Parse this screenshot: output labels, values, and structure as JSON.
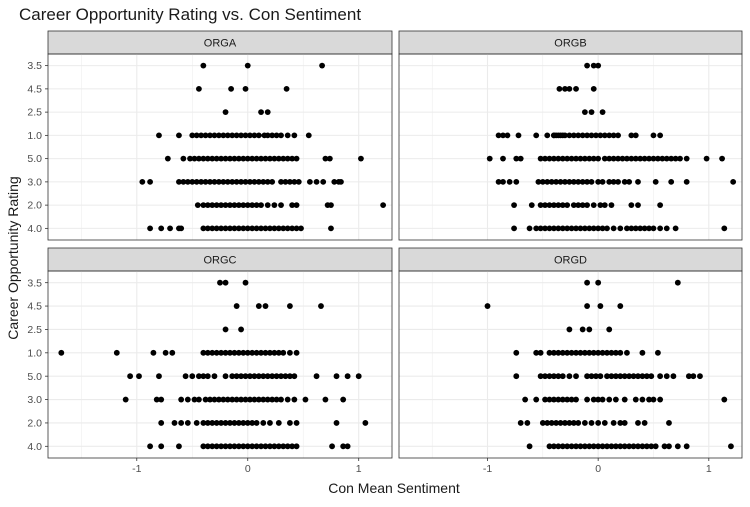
{
  "chart_data": {
    "type": "scatter",
    "title": "Career Opportunity Rating vs. Con Sentiment",
    "xlabel": "Con Mean Sentiment",
    "ylabel": "Career Opportunity Rating",
    "xlim": [
      -1.8,
      1.3
    ],
    "x_ticks": [
      -1,
      0,
      1
    ],
    "x_tick_labels": [
      "-1",
      "0",
      "1"
    ],
    "y_categories": [
      "4.0",
      "2.0",
      "3.0",
      "5.0",
      "1.0",
      "2.5",
      "4.5",
      "3.5"
    ],
    "grid": true,
    "facets": [
      {
        "name": "ORGA",
        "points": {
          "3.5": [
            -0.4,
            0.0,
            0.67
          ],
          "4.5": [
            -0.44,
            -0.15,
            -0.02,
            0.35
          ],
          "2.5": [
            -0.2,
            0.12,
            0.18
          ],
          "1.0": [
            -0.8,
            -0.62,
            -0.5,
            -0.46,
            -0.42,
            -0.38,
            -0.34,
            -0.3,
            -0.26,
            -0.22,
            -0.18,
            -0.14,
            -0.1,
            -0.06,
            -0.02,
            0.02,
            0.06,
            0.1,
            0.15,
            0.18,
            0.22,
            0.26,
            0.3,
            0.36,
            0.42,
            0.55
          ],
          "5.0": [
            -0.72,
            -0.58,
            -0.52,
            -0.48,
            -0.44,
            -0.4,
            -0.36,
            -0.32,
            -0.28,
            -0.24,
            -0.2,
            -0.16,
            -0.12,
            -0.08,
            -0.04,
            0.0,
            0.04,
            0.08,
            0.12,
            0.16,
            0.2,
            0.24,
            0.28,
            0.32,
            0.36,
            0.4,
            0.44,
            0.7,
            0.74,
            1.02
          ],
          "3.0": [
            -0.95,
            -0.88,
            -0.62,
            -0.58,
            -0.54,
            -0.5,
            -0.46,
            -0.42,
            -0.38,
            -0.34,
            -0.3,
            -0.26,
            -0.22,
            -0.18,
            -0.14,
            -0.1,
            -0.06,
            -0.02,
            0.02,
            0.06,
            0.1,
            0.14,
            0.18,
            0.22,
            0.3,
            0.34,
            0.38,
            0.42,
            0.46,
            0.56,
            0.62,
            0.68,
            0.78,
            0.82,
            0.84
          ],
          "2.0": [
            -0.45,
            -0.4,
            -0.36,
            -0.32,
            -0.28,
            -0.24,
            -0.2,
            -0.16,
            -0.12,
            -0.08,
            -0.04,
            0.0,
            0.04,
            0.08,
            0.12,
            0.18,
            0.24,
            0.3,
            0.4,
            0.44,
            0.72,
            0.75,
            1.22
          ],
          "4.0": [
            -0.88,
            -0.78,
            -0.7,
            -0.62,
            -0.6,
            -0.4,
            -0.36,
            -0.32,
            -0.28,
            -0.24,
            -0.2,
            -0.16,
            -0.12,
            -0.08,
            -0.04,
            0.0,
            0.04,
            0.08,
            0.12,
            0.16,
            0.2,
            0.24,
            0.28,
            0.32,
            0.36,
            0.4,
            0.44,
            0.48,
            0.75
          ]
        }
      },
      {
        "name": "ORGB",
        "points": {
          "3.5": [
            -0.1,
            -0.04,
            0.0
          ],
          "4.5": [
            -0.35,
            -0.3,
            -0.26,
            -0.2,
            -0.04
          ],
          "2.5": [
            -0.12,
            -0.06,
            0.04
          ],
          "1.0": [
            -0.9,
            -0.86,
            -0.82,
            -0.72,
            -0.56,
            -0.46,
            -0.4,
            -0.36,
            -0.32,
            -0.4,
            -0.38,
            -0.34,
            -0.3,
            -0.26,
            -0.22,
            -0.18,
            -0.14,
            -0.1,
            -0.06,
            -0.02,
            0.02,
            0.06,
            0.1,
            0.14,
            0.18,
            0.3,
            0.34,
            0.5,
            0.56
          ],
          "5.0": [
            -0.98,
            -0.86,
            -0.74,
            -0.7,
            -0.52,
            -0.48,
            -0.44,
            -0.4,
            -0.36,
            -0.32,
            -0.28,
            -0.24,
            -0.2,
            -0.16,
            -0.12,
            -0.08,
            -0.04,
            0.0,
            0.06,
            0.1,
            0.14,
            0.18,
            0.22,
            0.26,
            0.3,
            0.34,
            0.38,
            0.42,
            0.46,
            0.5,
            0.54,
            0.58,
            0.62,
            0.66,
            0.7,
            0.74,
            0.8,
            0.98,
            1.12
          ],
          "3.0": [
            -0.9,
            -0.86,
            -0.8,
            -0.74,
            -0.54,
            -0.5,
            -0.46,
            -0.42,
            -0.38,
            -0.34,
            -0.3,
            -0.26,
            -0.22,
            -0.18,
            -0.14,
            -0.1,
            -0.06,
            0.0,
            0.04,
            0.1,
            0.14,
            0.18,
            0.24,
            0.28,
            0.36,
            0.52,
            0.66,
            0.8,
            1.22
          ],
          "2.0": [
            -0.76,
            -0.6,
            -0.52,
            -0.48,
            -0.44,
            -0.4,
            -0.36,
            -0.32,
            -0.28,
            -0.22,
            -0.18,
            -0.14,
            -0.1,
            -0.04,
            0.02,
            0.06,
            0.12,
            0.3,
            0.36,
            0.56
          ],
          "4.0": [
            -0.76,
            -0.62,
            -0.56,
            -0.52,
            -0.48,
            -0.44,
            -0.4,
            -0.36,
            -0.32,
            -0.28,
            -0.24,
            -0.2,
            -0.16,
            -0.12,
            -0.08,
            -0.04,
            0.0,
            0.04,
            0.08,
            0.14,
            0.2,
            0.26,
            0.3,
            0.34,
            0.38,
            0.42,
            0.46,
            0.5,
            0.56,
            0.62,
            0.7,
            1.14
          ]
        }
      },
      {
        "name": "ORGC",
        "points": {
          "3.5": [
            -0.25,
            -0.2,
            -0.02
          ],
          "4.5": [
            -0.1,
            0.1,
            0.16,
            0.38,
            0.66
          ],
          "2.5": [
            -0.2,
            -0.06
          ],
          "1.0": [
            -1.68,
            -1.18,
            -0.85,
            -0.74,
            -0.68,
            -0.4,
            -0.36,
            -0.32,
            -0.28,
            -0.24,
            -0.2,
            -0.16,
            -0.12,
            -0.08,
            -0.04,
            0.0,
            0.04,
            0.08,
            0.12,
            0.16,
            0.2,
            0.24,
            0.28,
            0.32,
            0.38,
            0.44
          ],
          "5.0": [
            -1.06,
            -0.98,
            -0.8,
            -0.56,
            -0.5,
            -0.44,
            -0.4,
            -0.36,
            -0.3,
            -0.2,
            -0.14,
            -0.1,
            -0.06,
            -0.02,
            0.02,
            0.06,
            0.1,
            0.14,
            0.18,
            0.22,
            0.26,
            0.3,
            0.34,
            0.38,
            0.42,
            0.62,
            0.8,
            0.9,
            1.0
          ],
          "3.0": [
            -1.1,
            -0.82,
            -0.78,
            -0.6,
            -0.54,
            -0.48,
            -0.44,
            -0.38,
            -0.34,
            -0.3,
            -0.26,
            -0.22,
            -0.18,
            -0.14,
            -0.1,
            -0.06,
            -0.02,
            0.02,
            0.06,
            0.1,
            0.14,
            0.18,
            0.22,
            0.26,
            0.3,
            0.36,
            0.42,
            0.52,
            0.7,
            0.86
          ],
          "2.0": [
            -0.78,
            -0.66,
            -0.6,
            -0.54,
            -0.46,
            -0.4,
            -0.36,
            -0.32,
            -0.28,
            -0.24,
            -0.2,
            -0.16,
            -0.12,
            -0.08,
            -0.04,
            0.0,
            0.04,
            0.08,
            0.14,
            0.2,
            0.28,
            0.38,
            0.44,
            0.8,
            1.06
          ],
          "4.0": [
            -0.88,
            -0.78,
            -0.62,
            -0.4,
            -0.36,
            -0.32,
            -0.28,
            -0.24,
            -0.2,
            -0.16,
            -0.12,
            -0.08,
            -0.04,
            0.0,
            0.04,
            0.08,
            0.12,
            0.16,
            0.2,
            0.24,
            0.28,
            0.32,
            0.36,
            0.4,
            0.44,
            0.76,
            0.86,
            0.9
          ]
        }
      },
      {
        "name": "ORGD",
        "points": {
          "3.5": [
            -0.1,
            0.0,
            0.72
          ],
          "4.5": [
            -1.0,
            -0.1,
            0.02,
            0.2
          ],
          "2.5": [
            -0.26,
            -0.14,
            -0.08,
            0.1
          ],
          "1.0": [
            -0.74,
            -0.56,
            -0.52,
            -0.44,
            -0.4,
            -0.36,
            -0.32,
            -0.28,
            -0.24,
            -0.2,
            -0.16,
            -0.12,
            -0.08,
            -0.04,
            0.0,
            0.04,
            0.08,
            0.12,
            0.16,
            0.2,
            0.26,
            0.4,
            0.54
          ],
          "5.0": [
            -0.74,
            -0.52,
            -0.48,
            -0.44,
            -0.4,
            -0.36,
            -0.32,
            -0.26,
            -0.2,
            -0.1,
            -0.06,
            -0.02,
            0.02,
            0.08,
            0.12,
            0.16,
            0.2,
            0.24,
            0.28,
            0.32,
            0.36,
            0.4,
            0.44,
            0.48,
            0.56,
            0.62,
            0.68,
            0.82,
            0.86,
            0.92
          ],
          "3.0": [
            -0.66,
            -0.56,
            -0.48,
            -0.44,
            -0.4,
            -0.36,
            -0.32,
            -0.28,
            -0.24,
            -0.2,
            -0.1,
            -0.04,
            0.0,
            0.04,
            0.1,
            0.16,
            0.24,
            0.34,
            0.4,
            0.46,
            0.5,
            0.56,
            1.14
          ],
          "2.0": [
            -0.7,
            -0.64,
            -0.5,
            -0.46,
            -0.42,
            -0.38,
            -0.34,
            -0.3,
            -0.26,
            -0.22,
            -0.18,
            -0.12,
            -0.06,
            0.0,
            0.06,
            0.14,
            0.2,
            0.24,
            0.36,
            0.42,
            0.64
          ],
          "4.0": [
            -0.62,
            -0.44,
            -0.4,
            -0.36,
            -0.32,
            -0.28,
            -0.24,
            -0.2,
            -0.16,
            -0.12,
            -0.08,
            -0.04,
            0.0,
            0.04,
            0.08,
            0.12,
            0.16,
            0.2,
            0.24,
            0.28,
            0.32,
            0.36,
            0.4,
            0.44,
            0.48,
            0.52,
            0.6,
            0.64,
            0.72,
            0.8,
            1.2
          ]
        }
      }
    ]
  }
}
